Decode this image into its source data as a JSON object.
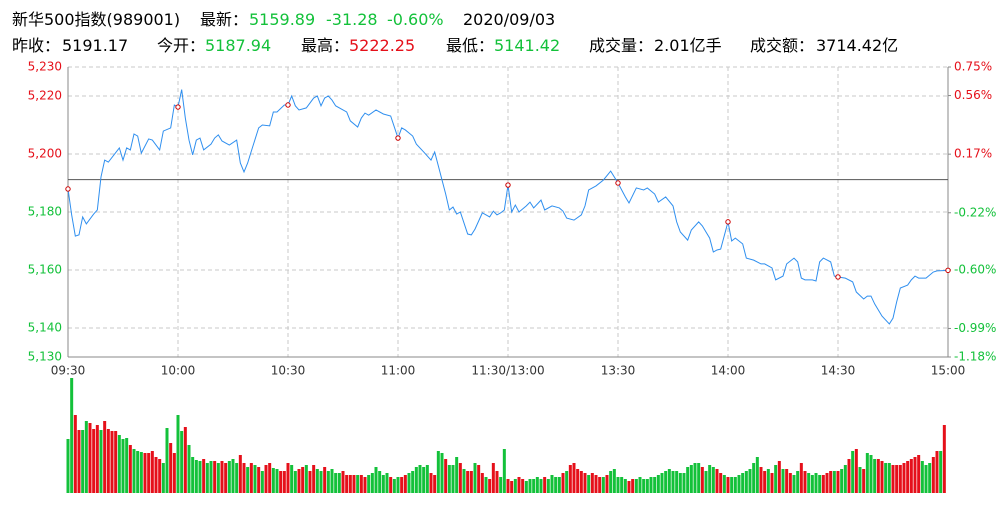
{
  "header": {
    "row1": [
      {
        "text": "新华500指数(989001)",
        "color": "#000000"
      },
      {
        "text": "最新：",
        "color": "#000000"
      },
      {
        "text": "5159.89",
        "color": "#13c13a"
      },
      {
        "text": "-31.28",
        "color": "#13c13a"
      },
      {
        "text": "-0.60%",
        "color": "#13c13a"
      },
      {
        "text": "2020/09/03",
        "color": "#000000"
      }
    ],
    "row2": [
      {
        "text": "昨收：",
        "color": "#000000"
      },
      {
        "text": "5191.17",
        "color": "#000000"
      },
      {
        "text": "今开：",
        "color": "#000000"
      },
      {
        "text": "5187.94",
        "color": "#13c13a"
      },
      {
        "text": "最高：",
        "color": "#000000"
      },
      {
        "text": "5222.25",
        "color": "#e5101a"
      },
      {
        "text": "最低：",
        "color": "#000000"
      },
      {
        "text": "5141.42",
        "color": "#13c13a"
      },
      {
        "text": "成交量：",
        "color": "#000000"
      },
      {
        "text": "2.01亿手",
        "color": "#000000"
      },
      {
        "text": "成交额：",
        "color": "#000000"
      },
      {
        "text": "3714.42亿",
        "color": "#000000"
      }
    ]
  },
  "chart_data": {
    "type": "line",
    "baseline": 5191.17,
    "color_up": "#e5101a",
    "color_down": "#13c13a",
    "xlim": [
      0,
      240
    ],
    "xticks": [
      {
        "value": 0,
        "label": "09:30"
      },
      {
        "value": 30,
        "label": "10:00"
      },
      {
        "value": 60,
        "label": "10:30"
      },
      {
        "value": 90,
        "label": "11:00"
      },
      {
        "value": 120,
        "label": "11:30/13:00"
      },
      {
        "value": 150,
        "label": "13:30"
      },
      {
        "value": 180,
        "label": "14:00"
      },
      {
        "value": 210,
        "label": "14:30"
      },
      {
        "value": 240,
        "label": "15:00"
      }
    ],
    "ylim": [
      5130,
      5230
    ],
    "yticks": [
      {
        "value": 5130,
        "label": "5,130"
      },
      {
        "value": 5140,
        "label": "5,140"
      },
      {
        "value": 5160,
        "label": "5,160"
      },
      {
        "value": 5180,
        "label": "5,180"
      },
      {
        "value": 5200,
        "label": "5,200"
      },
      {
        "value": 5220,
        "label": "5,220"
      },
      {
        "value": 5230,
        "label": "5,230"
      }
    ],
    "y2lim": [
      -1.18,
      0.75
    ],
    "y2ticks": [
      {
        "value": -1.18,
        "label": "-1.18%"
      },
      {
        "value": -0.99,
        "label": "-0.99%"
      },
      {
        "value": -0.6,
        "label": "-0.60%"
      },
      {
        "value": -0.22,
        "label": "-0.22%"
      },
      {
        "value": 0.17,
        "label": "0.17%"
      },
      {
        "value": 0.56,
        "label": "0.56%"
      },
      {
        "value": 0.75,
        "label": "0.75%"
      }
    ],
    "grid": true,
    "x": [
      0,
      1,
      2,
      3,
      4,
      5,
      7,
      8,
      9,
      10,
      11,
      14,
      15,
      16,
      17,
      18,
      19,
      20,
      22,
      23,
      25,
      26,
      28,
      29,
      30,
      31,
      32,
      33,
      34,
      35,
      36,
      37,
      39,
      40,
      41,
      42,
      44,
      46,
      47,
      48,
      49,
      50,
      52,
      53,
      55,
      56,
      57,
      59,
      60,
      61,
      62,
      63,
      65,
      67,
      68,
      69,
      70,
      71,
      72,
      73,
      75,
      76,
      77,
      79,
      80,
      81,
      82,
      84,
      86,
      88,
      90,
      91,
      92,
      94,
      95,
      97,
      99,
      100,
      101,
      103,
      104,
      105,
      106,
      107,
      109,
      110,
      111,
      113,
      115,
      116,
      117,
      118,
      119,
      120,
      121,
      122,
      123,
      125,
      126,
      127,
      129,
      130,
      132,
      134,
      135,
      136,
      138,
      140,
      141,
      142,
      144,
      146,
      148,
      150,
      152,
      153,
      155,
      157,
      158,
      160,
      161,
      163,
      165,
      166,
      167,
      169,
      170,
      172,
      173,
      175,
      176,
      177,
      178,
      180,
      181,
      182,
      184,
      185,
      187,
      189,
      190,
      192,
      193,
      195,
      196,
      198,
      199,
      200,
      201,
      203,
      204,
      205,
      206,
      208,
      209,
      210,
      212,
      214,
      215,
      217,
      218,
      219,
      220,
      222,
      224,
      225,
      226,
      227,
      229,
      230,
      231,
      232,
      234,
      236,
      237,
      240
    ],
    "series": [
      {
        "color": "#2f8fef",
        "values": [
          5187.94,
          5179.0,
          5171.7,
          5172.1,
          5178.3,
          5175.9,
          5179.3,
          5180.7,
          5192.1,
          5197.9,
          5197.2,
          5202.1,
          5197.9,
          5202.1,
          5201.4,
          5206.9,
          5206.2,
          5200.3,
          5205.2,
          5204.8,
          5201.4,
          5207.9,
          5209.0,
          5216.9,
          5216.2,
          5222.2,
          5212.4,
          5204.8,
          5199.7,
          5204.8,
          5205.5,
          5201.4,
          5203.4,
          5205.5,
          5206.6,
          5204.5,
          5203.1,
          5204.8,
          5196.9,
          5193.8,
          5196.9,
          5201.0,
          5209.0,
          5210.0,
          5209.7,
          5214.5,
          5214.5,
          5216.9,
          5216.9,
          5220.0,
          5216.6,
          5215.2,
          5215.9,
          5219.3,
          5220.0,
          5216.6,
          5219.3,
          5220.0,
          5218.6,
          5216.6,
          5215.2,
          5214.5,
          5211.4,
          5209.3,
          5212.4,
          5214.1,
          5213.4,
          5215.2,
          5213.8,
          5213.1,
          5205.5,
          5209.0,
          5208.3,
          5206.2,
          5203.4,
          5200.7,
          5197.9,
          5200.7,
          5195.9,
          5186.2,
          5180.7,
          5181.7,
          5179.3,
          5180.0,
          5172.4,
          5172.1,
          5174.1,
          5179.7,
          5178.3,
          5180.3,
          5179.0,
          5179.7,
          5180.7,
          5189.3,
          5180.0,
          5182.4,
          5180.0,
          5182.1,
          5183.4,
          5181.4,
          5184.1,
          5180.7,
          5182.1,
          5181.4,
          5180.3,
          5177.9,
          5177.2,
          5179.0,
          5182.1,
          5187.6,
          5189.0,
          5191.0,
          5194.1,
          5190.0,
          5185.2,
          5183.1,
          5188.3,
          5187.6,
          5188.3,
          5186.2,
          5183.4,
          5185.2,
          5182.1,
          5176.6,
          5173.1,
          5170.3,
          5173.8,
          5176.6,
          5175.2,
          5171.0,
          5166.2,
          5166.9,
          5167.2,
          5176.6,
          5170.0,
          5171.0,
          5169.0,
          5164.1,
          5163.4,
          5162.1,
          5162.1,
          5160.7,
          5156.6,
          5157.9,
          5162.1,
          5164.1,
          5162.8,
          5157.2,
          5156.6,
          5156.6,
          5156.2,
          5162.8,
          5164.1,
          5162.8,
          5157.9,
          5157.6,
          5157.2,
          5155.9,
          5152.4,
          5150.0,
          5151.0,
          5151.0,
          5148.3,
          5144.1,
          5141.4,
          5143.4,
          5149.0,
          5153.8,
          5154.8,
          5156.6,
          5157.9,
          5157.2,
          5157.2,
          5159.3,
          5159.7,
          5159.89
        ]
      }
    ],
    "volume": {
      "values": [
        54,
        115,
        78,
        63,
        63,
        72,
        70,
        64,
        68,
        63,
        72,
        64,
        62,
        62,
        58,
        54,
        55,
        48,
        44,
        42,
        41,
        40,
        40,
        42,
        36,
        34,
        30,
        65,
        50,
        40,
        78,
        62,
        66,
        48,
        36,
        33,
        32,
        34,
        30,
        32,
        32,
        30,
        32,
        30,
        32,
        34,
        30,
        38,
        30,
        26,
        30,
        28,
        26,
        22,
        28,
        30,
        25,
        24,
        22,
        22,
        30,
        28,
        22,
        24,
        26,
        28,
        22,
        28,
        24,
        22,
        26,
        22,
        24,
        20,
        20,
        22,
        18,
        18,
        18,
        18,
        18,
        16,
        18,
        20,
        26,
        22,
        18,
        20,
        16,
        14,
        16,
        16,
        18,
        20,
        22,
        26,
        28,
        26,
        28,
        20,
        18,
        42,
        40,
        34,
        28,
        28,
        36,
        30,
        24,
        22,
        22,
        30,
        28,
        20,
        16,
        14,
        30,
        22,
        16,
        44,
        14,
        12,
        14,
        16,
        14,
        12,
        14,
        14,
        16,
        14,
        16,
        14,
        18,
        16,
        16,
        20,
        22,
        28,
        30,
        24,
        22,
        20,
        18,
        20,
        18,
        16,
        16,
        18,
        22,
        24,
        16,
        16,
        14,
        12,
        14,
        14,
        16,
        14,
        14,
        16,
        16,
        18,
        20,
        22,
        24,
        22,
        22,
        20,
        20,
        26,
        28,
        30,
        30,
        26,
        22,
        28,
        26,
        24,
        20,
        18,
        16,
        16,
        16,
        18,
        20,
        22,
        24,
        30,
        36,
        26,
        22,
        24,
        20,
        28,
        32,
        24,
        24,
        20,
        18,
        22,
        30,
        22,
        20,
        18,
        20,
        18,
        18,
        20,
        22,
        22,
        22,
        24,
        28,
        34,
        42,
        44,
        26,
        24,
        40,
        38,
        34,
        34,
        32,
        30,
        30,
        28,
        28,
        28,
        30,
        32,
        34,
        36,
        38,
        32,
        28,
        30,
        36,
        42,
        42,
        68
      ],
      "up": [
        0,
        0,
        1,
        1,
        0,
        0,
        1,
        1,
        1,
        0,
        1,
        1,
        1,
        1,
        0,
        0,
        0,
        1,
        0,
        0,
        0,
        1,
        1,
        1,
        1,
        1,
        0,
        0,
        1,
        1,
        0,
        0,
        1,
        0,
        0,
        0,
        0,
        1,
        0,
        0,
        1,
        0,
        1,
        1,
        0,
        0,
        0,
        1,
        1,
        0,
        1,
        0,
        1,
        0,
        1,
        1,
        0,
        0,
        1,
        1,
        1,
        0,
        0,
        1,
        1,
        0,
        1,
        1,
        0,
        0,
        1,
        0,
        0,
        0,
        0,
        1,
        1,
        1,
        1,
        0,
        1,
        1,
        0,
        0,
        0,
        0,
        0,
        0,
        1,
        0,
        0,
        1,
        1,
        0,
        0,
        0,
        0,
        0,
        0,
        1,
        1,
        0,
        0,
        1,
        0,
        0,
        0,
        1,
        0,
        1,
        1,
        0,
        1,
        1,
        0,
        1,
        1,
        1,
        0,
        0,
        1,
        1,
        0,
        1,
        1,
        0,
        0,
        0,
        0,
        0,
        1,
        0,
        0,
        0,
        0,
        1,
        0,
        1,
        1,
        1,
        1,
        1,
        0,
        1,
        1,
        1,
        0,
        1,
        0,
        0,
        0,
        0,
        0,
        1,
        1,
        0,
        0,
        0,
        0,
        0,
        0,
        0,
        0,
        0,
        0,
        0,
        0,
        0,
        0,
        0,
        0,
        0,
        0,
        1,
        0,
        0,
        0,
        1,
        1,
        0,
        1,
        0,
        0,
        0,
        0,
        0,
        0,
        0,
        0,
        1,
        1,
        0,
        1,
        0,
        1,
        0,
        1,
        1,
        0,
        0,
        1,
        1,
        0,
        0,
        0,
        0,
        1,
        1,
        1,
        0,
        1,
        0,
        0,
        1,
        0,
        1,
        0,
        1,
        0,
        0,
        0,
        1,
        1,
        0,
        0,
        1,
        1,
        1,
        1,
        1,
        1,
        1,
        1,
        0,
        0,
        0,
        1,
        1,
        0,
        1
      ]
    }
  }
}
